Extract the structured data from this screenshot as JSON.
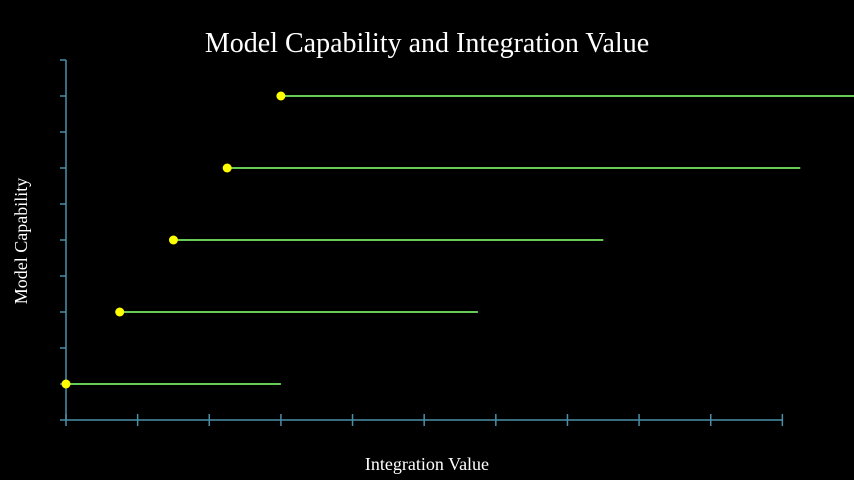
{
  "chart_data": {
    "type": "scatter",
    "title": "Model Capability and Integration Value",
    "xlabel": "Integration Value",
    "ylabel": "Model Capability",
    "xlim": [
      0,
      11
    ],
    "ylim": [
      -0.5,
      4.5
    ],
    "x_ticks": [
      0,
      1,
      2,
      3,
      4,
      5,
      6,
      7,
      8,
      9,
      10
    ],
    "y_ticks": [
      -0.5,
      0,
      0.5,
      1,
      1.5,
      2,
      2.5,
      3,
      3.5,
      4,
      4.5
    ],
    "tick_labels_shown": false,
    "grid": false,
    "legend": "none",
    "points": [
      {
        "x": 0.0,
        "y": 0,
        "line_to_x": 3.0
      },
      {
        "x": 0.75,
        "y": 1,
        "line_to_x": 5.75
      },
      {
        "x": 1.5,
        "y": 2,
        "line_to_x": 7.5
      },
      {
        "x": 2.25,
        "y": 3,
        "line_to_x": 10.25
      },
      {
        "x": 3.0,
        "y": 4,
        "line_to_x": 11.0
      }
    ],
    "colors": {
      "background": "#000000",
      "axis": "#4a8fa8",
      "marker": "#ffff00",
      "line": "#66cc55",
      "text": "#ffffff"
    }
  }
}
